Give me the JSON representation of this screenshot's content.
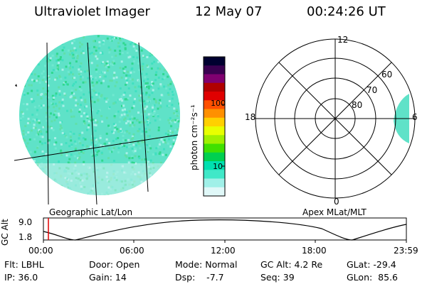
{
  "header": {
    "instrument": "Ultraviolet Imager",
    "date": "12 May 07",
    "time": "00:24:26 UT"
  },
  "colorbar": {
    "unit_label": "photon cm⁻²s⁻¹",
    "tick_labels": [
      "100",
      "10"
    ],
    "colors": [
      "#000030",
      "#3a0050",
      "#800070",
      "#b00000",
      "#e00000",
      "#ff5000",
      "#ff9000",
      "#ffd000",
      "#e8ff00",
      "#a0f000",
      "#40e000",
      "#00d050",
      "#00e0b0",
      "#40e8c8",
      "#a0f0e8",
      "#e0f8f8"
    ]
  },
  "left_panel": {
    "caption": "Geographic Lat/Lon",
    "fill_colors": [
      "#40e0c0",
      "#70e8d0",
      "#a8f0e8",
      "#30d890",
      "#60e0a8"
    ]
  },
  "polar_plot": {
    "caption": "Apex MLat/MLT",
    "mlt_labels": {
      "top": "12",
      "left": "18",
      "right": "6",
      "bottom": "0"
    },
    "lat_labels": [
      "60",
      "70",
      "80"
    ]
  },
  "gc_alt_plot": {
    "ylabel": "GC Alt",
    "yticks": [
      "9.0",
      "1.8"
    ],
    "xticks": [
      "00:00",
      "06:00",
      "12:00",
      "18:00",
      "23:59"
    ],
    "marker_color": "#e00000"
  },
  "status": {
    "row1": {
      "flt": "Flt: LBHL",
      "door": "Door: Open",
      "mode": "Mode: Normal",
      "gc_alt": "GC Alt: 4.2 Re",
      "glat": "GLat: -29.4"
    },
    "row2": {
      "ip": "IP: 36.0",
      "gain": "Gain: 14",
      "dsp": "Dsp:    -7.7",
      "seq": "Seq: 39",
      "glon": "GLon:  85.6"
    }
  }
}
